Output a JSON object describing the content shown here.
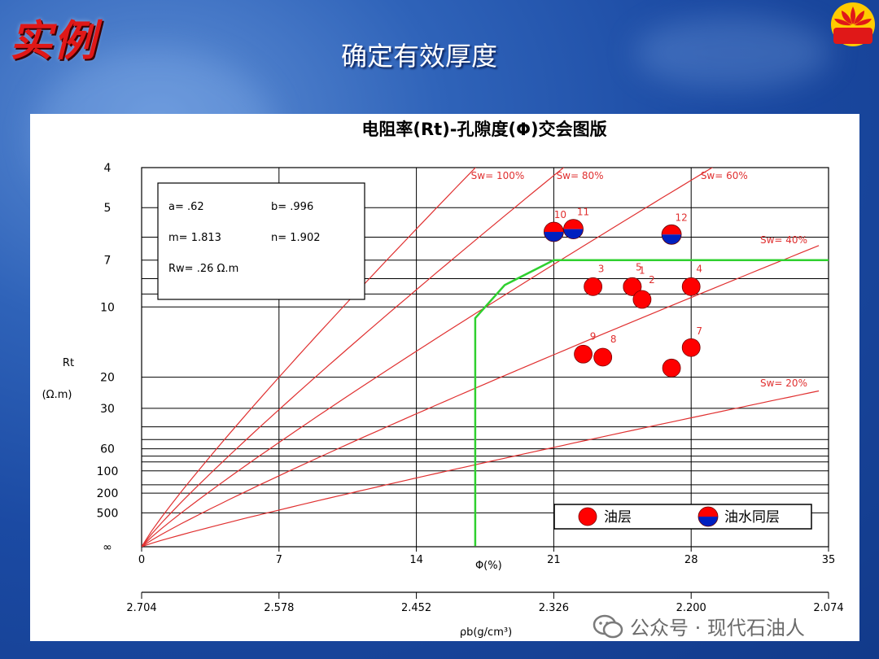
{
  "slide": {
    "badge": "实例",
    "title": "确定有效厚度"
  },
  "watermark": {
    "text": "公众号 · 现代石油人"
  },
  "colors": {
    "oil": "#ff0000",
    "water": "#0020c0",
    "sw_lines": "#e03030",
    "cutoff": "#2fd02f",
    "grid": "#000000"
  },
  "chart_data": {
    "type": "scatter",
    "title": "电阻率(Rt)-孔隙度(Φ)交会图版",
    "xlabel": "Φ(%)",
    "x2label": "ρb(g/cm³)",
    "ylabel": "Rt",
    "ylabel_unit": "(Ω.m)",
    "xlim": [
      0,
      35
    ],
    "x_ticks": [
      0,
      7,
      14,
      21,
      28,
      35
    ],
    "x_tick_labels": [
      "0",
      "7",
      "14",
      "21",
      "28",
      "35"
    ],
    "x2_tick_labels": [
      "2.704",
      "2.578",
      "2.452",
      "2.326",
      "2.200",
      "2.074"
    ],
    "y_scale": "reciprocal-sqrt",
    "y_tick_labels": [
      "4",
      "5",
      "7",
      "10",
      "20",
      "30",
      "60",
      "100",
      "200",
      "500",
      "∞"
    ],
    "y_tick_values": [
      4,
      5,
      7,
      10,
      20,
      30,
      60,
      100,
      200,
      500,
      null
    ],
    "y_gridlines": [
      4,
      5,
      6,
      7,
      8,
      9,
      10,
      20,
      30,
      40,
      50,
      60,
      70,
      80,
      100,
      150,
      200,
      500
    ],
    "params": {
      "a": "a= .62",
      "b": "b= .996",
      "m": "m= 1.813",
      "n": "n= 1.902",
      "rw": "Rw= .26 Ω.m"
    },
    "sw_lines": [
      {
        "label": "Sw= 100%",
        "sw": 1.0
      },
      {
        "label": "Sw= 80%",
        "sw": 0.8
      },
      {
        "label": "Sw= 60%",
        "sw": 0.6
      },
      {
        "label": "Sw= 40%",
        "sw": 0.4
      },
      {
        "label": "Sw= 20%",
        "sw": 0.2
      }
    ],
    "cutoff": {
      "por_min": 17,
      "rt_min": 7,
      "path": [
        [
          17,
          1000000
        ],
        [
          17,
          11
        ],
        [
          18.5,
          8.4
        ],
        [
          21,
          7
        ],
        [
          35,
          7
        ]
      ]
    },
    "series": [
      {
        "name": "油层",
        "points": [
          {
            "id": "3",
            "x": 23.0,
            "y": 8.5
          },
          {
            "id": "5",
            "x": 25.0,
            "y": 8.5
          },
          {
            "id": "1",
            "x": 25.0,
            "y": 8.5
          },
          {
            "id": "2",
            "x": 25.5,
            "y": 9.4
          },
          {
            "id": "4",
            "x": 28.0,
            "y": 8.5
          },
          {
            "id": "9",
            "x": 22.5,
            "y": 15.5
          },
          {
            "id": "8",
            "x": 23.5,
            "y": 16.0
          },
          {
            "id": "7",
            "x": 28.0,
            "y": 14.5
          },
          {
            "id": "",
            "x": 27.0,
            "y": 18.0
          }
        ]
      },
      {
        "name": "油水同层",
        "points": [
          {
            "id": "10",
            "x": 21.0,
            "y": 5.8
          },
          {
            "id": "11",
            "x": 22.0,
            "y": 5.7
          },
          {
            "id": "12",
            "x": 27.0,
            "y": 5.9
          }
        ]
      }
    ],
    "legend": {
      "position": "bottom-right",
      "labels": [
        "油层",
        "油水同层"
      ]
    }
  }
}
